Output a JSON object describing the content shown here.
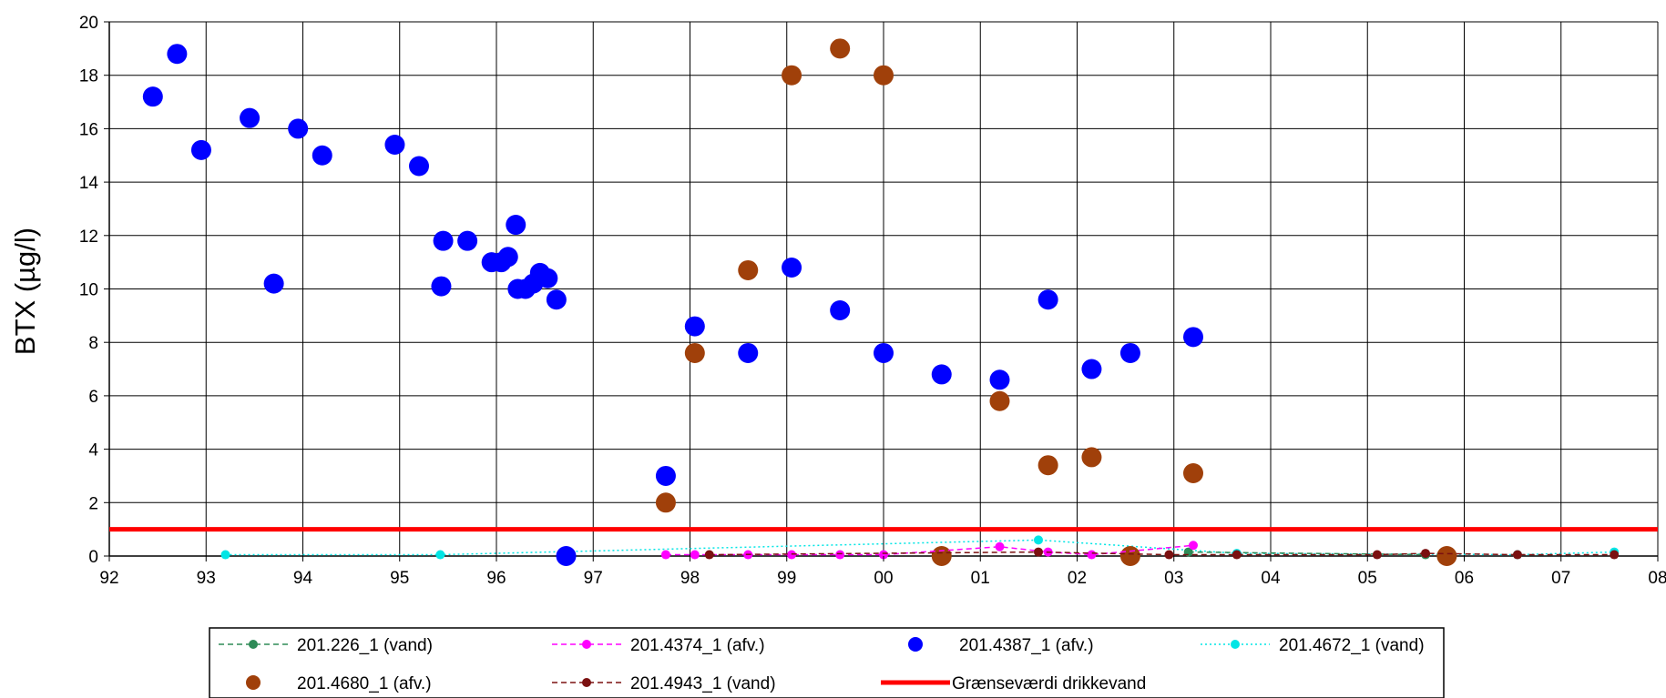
{
  "chart_data": {
    "type": "scatter",
    "title": "",
    "xlabel": "",
    "ylabel": "BTX (µg/l)",
    "xlim": [
      1992,
      2008
    ],
    "ylim": [
      0,
      20
    ],
    "x_tick_labels": [
      "92",
      "93",
      "94",
      "95",
      "96",
      "97",
      "98",
      "99",
      "00",
      "01",
      "02",
      "03",
      "04",
      "05",
      "06",
      "07",
      "08"
    ],
    "y_tick_labels": [
      "0",
      "2",
      "4",
      "6",
      "8",
      "10",
      "12",
      "14",
      "16",
      "18",
      "20"
    ],
    "grid": true,
    "legend_position": "bottom",
    "series": [
      {
        "name": "201.226_1 (vand)",
        "color": "#2e8b57",
        "style": "dashed-line-marker",
        "x": [
          2003.15,
          2005.6
        ],
        "y": [
          0.15,
          0.05
        ]
      },
      {
        "name": "201.4374_1 (afv.)",
        "color": "#ff00ff",
        "style": "dashed-line-marker",
        "x": [
          1997.75,
          1998.05,
          1998.6,
          1999.05,
          1999.55,
          2000.0,
          2001.2,
          2001.7,
          2002.15,
          2003.2
        ],
        "y": [
          0.05,
          0.05,
          0.05,
          0.05,
          0.05,
          0.05,
          0.35,
          0.15,
          0.05,
          0.4
        ]
      },
      {
        "name": "201.4387_1 (afv.)",
        "color": "#0000ff",
        "style": "marker",
        "x": [
          1992.45,
          1992.7,
          1992.95,
          1993.45,
          1993.7,
          1993.95,
          1994.2,
          1994.95,
          1995.2,
          1995.43,
          1995.45,
          1995.7,
          1995.95,
          1996.05,
          1996.12,
          1996.2,
          1996.22,
          1996.3,
          1996.38,
          1996.45,
          1996.53,
          1996.62,
          1996.72,
          1997.75,
          1998.05,
          1998.6,
          1999.05,
          1999.55,
          2000.0,
          2000.6,
          2001.2,
          2001.7,
          2002.15,
          2002.55,
          2003.2
        ],
        "y": [
          17.2,
          18.8,
          15.2,
          16.4,
          10.2,
          16.0,
          15.0,
          15.4,
          14.6,
          10.1,
          11.8,
          11.8,
          11.0,
          11.0,
          11.2,
          12.4,
          10.0,
          10.0,
          10.2,
          10.6,
          10.4,
          9.6,
          0.0,
          3.0,
          8.6,
          7.6,
          10.8,
          9.2,
          7.6,
          6.8,
          6.6,
          9.6,
          7.0,
          7.6,
          8.2
        ]
      },
      {
        "name": "201.4672_1 (vand)",
        "color": "#00e5e5",
        "style": "dotted-line-marker",
        "x": [
          1993.2,
          1995.42,
          2001.6,
          2003.65,
          2006.55,
          2007.55
        ],
        "y": [
          0.05,
          0.05,
          0.6,
          0.1,
          0.05,
          0.15
        ]
      },
      {
        "name": "201.4680_1 (afv.)",
        "color": "#a0400a",
        "style": "marker",
        "x": [
          1997.75,
          1998.05,
          1998.6,
          1999.05,
          1999.55,
          2000.0,
          2000.6,
          2001.2,
          2001.7,
          2002.15,
          2002.55,
          2003.2,
          2005.82
        ],
        "y": [
          2.0,
          7.6,
          10.7,
          18.0,
          19.0,
          18.0,
          0.0,
          5.8,
          3.4,
          3.7,
          0.0,
          3.1,
          0.0
        ]
      },
      {
        "name": "201.4943_1 (vand)",
        "color": "#7b1010",
        "style": "dashed-line-marker",
        "x": [
          1998.2,
          2001.6,
          2002.95,
          2003.65,
          2005.1,
          2005.6,
          2006.55,
          2007.55
        ],
        "y": [
          0.05,
          0.15,
          0.05,
          0.05,
          0.05,
          0.1,
          0.05,
          0.05
        ]
      },
      {
        "name": "Grænseværdi drikkevand",
        "color": "#ff0000",
        "style": "line",
        "x": [
          1992,
          2008
        ],
        "y": [
          1,
          1
        ]
      }
    ]
  }
}
